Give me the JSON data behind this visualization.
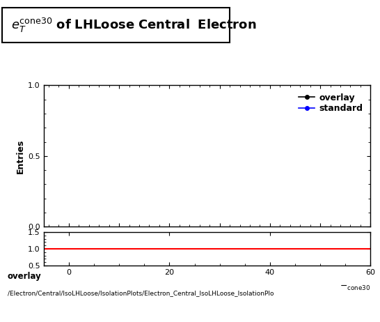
{
  "ylabel_main": "Entries",
  "xlim": [
    -5,
    60
  ],
  "ylim_main": [
    0,
    1
  ],
  "ylim_ratio": [
    0.5,
    1.5
  ],
  "xticks": [
    0,
    20,
    40,
    60
  ],
  "yticks_main": [
    0,
    0.5,
    1
  ],
  "yticks_ratio": [
    0.5,
    1.0,
    1.5
  ],
  "legend_entries": [
    "overlay",
    "standard"
  ],
  "legend_colors": [
    "#000000",
    "#0000ff"
  ],
  "ratio_line_color": "#ff0000",
  "ratio_line_y": 1.0,
  "bottom_text_1": "overlay",
  "bottom_text_2": "/Electron/Central/IsoLHLoose/IsolationPlots/Electron_Central_IsoLHLoose_IsolationPlo",
  "title_fontsize": 13,
  "axis_label_fontsize": 9,
  "tick_fontsize": 8,
  "legend_fontsize": 9,
  "background_color": "#ffffff",
  "fig_width": 5.46,
  "fig_height": 4.62,
  "fig_dpi": 100
}
